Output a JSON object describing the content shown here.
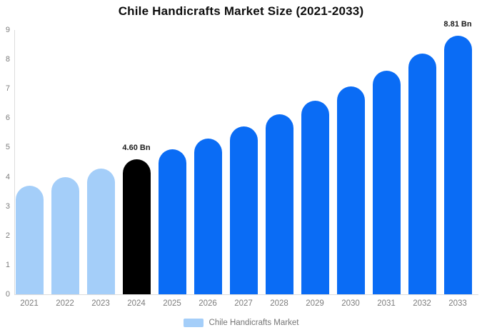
{
  "title": "Chile Handicrafts Market Size (2021-2033)",
  "colors": {
    "bar_past": "#a4cef9",
    "bar_current": "#000000",
    "bar_forecast": "#0a6cf5",
    "axis_line": "#dcdcdc",
    "tick_text": "#7d7d7d",
    "point_label_text": "#1a1a1a",
    "legend_text": "#757575"
  },
  "chart_data": {
    "type": "bar",
    "title": "Chile Handicrafts Market Size (2021-2033)",
    "categories": [
      "2021",
      "2022",
      "2023",
      "2024",
      "2025",
      "2026",
      "2027",
      "2028",
      "2029",
      "2030",
      "2031",
      "2032",
      "2033"
    ],
    "values": [
      3.7,
      3.98,
      4.28,
      4.6,
      4.94,
      5.31,
      5.71,
      6.14,
      6.6,
      7.09,
      7.62,
      8.2,
      8.81
    ],
    "unit": "Bn",
    "bar_styles": [
      "past",
      "past",
      "past",
      "current",
      "forecast",
      "forecast",
      "forecast",
      "forecast",
      "forecast",
      "forecast",
      "forecast",
      "forecast",
      "forecast"
    ],
    "point_labels": [
      "",
      "",
      "",
      "4.60 Bn",
      "",
      "",
      "",
      "",
      "",
      "",
      "",
      "",
      "8.81 Bn"
    ],
    "xlabel": "",
    "ylabel": "",
    "ylim": [
      0,
      9
    ],
    "y_ticks": [
      0,
      1,
      2,
      3,
      4,
      5,
      6,
      7,
      8,
      9
    ],
    "grid": false,
    "legend": {
      "position": "bottom",
      "entries": [
        {
          "label": "Chile Handicrafts Market",
          "swatch": "#a4cef9"
        }
      ]
    }
  }
}
